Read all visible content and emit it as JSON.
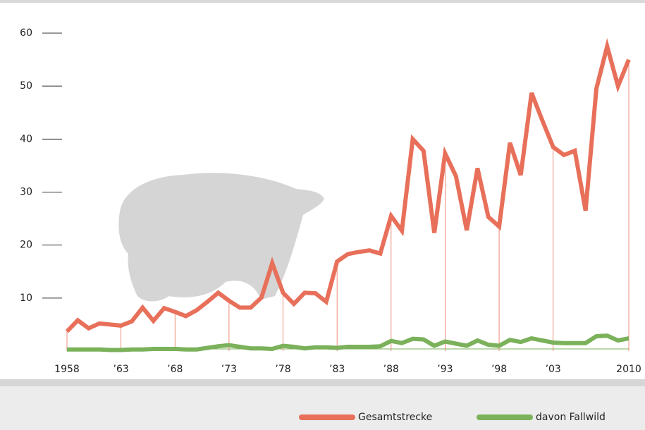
{
  "chart_data": {
    "type": "line",
    "x": [
      1958,
      1959,
      1960,
      1961,
      1962,
      1963,
      1964,
      1965,
      1966,
      1967,
      1968,
      1969,
      1970,
      1971,
      1972,
      1973,
      1974,
      1975,
      1976,
      1977,
      1978,
      1979,
      1980,
      1981,
      1982,
      1983,
      1984,
      1985,
      1986,
      1987,
      1988,
      1989,
      1990,
      1991,
      1992,
      1993,
      1994,
      1995,
      1996,
      1997,
      1998,
      1999,
      2000,
      2001,
      2002,
      2003,
      2004,
      2005,
      2006,
      2007,
      2008,
      2009,
      2010
    ],
    "series": [
      {
        "name": "Gesamtstrecke",
        "color": "#e8705a",
        "values": [
          3.7,
          5.8,
          4.3,
          5.2,
          5.0,
          4.8,
          5.6,
          8.2,
          5.7,
          8.1,
          7.4,
          6.6,
          7.7,
          9.3,
          11.0,
          9.5,
          8.2,
          8.2,
          10.1,
          16.6,
          11.0,
          8.9,
          11.0,
          10.9,
          9.3,
          16.9,
          18.3,
          18.7,
          19.0,
          18.4,
          25.5,
          22.7,
          40.0,
          37.8,
          22.3,
          37.3,
          33.0,
          22.8,
          34.5,
          25.3,
          23.5,
          39.3,
          33.2,
          48.7,
          43.5,
          38.5,
          37.0,
          37.8,
          26.5,
          49.5,
          57.5,
          50.0,
          55.0
        ]
      },
      {
        "name": "davon Fallwild",
        "color": "#7ab15a",
        "values": [
          0.3,
          0.3,
          0.3,
          0.3,
          0.2,
          0.2,
          0.3,
          0.3,
          0.4,
          0.4,
          0.4,
          0.3,
          0.3,
          0.6,
          0.9,
          1.1,
          0.8,
          0.5,
          0.5,
          0.4,
          1.0,
          0.8,
          0.5,
          0.7,
          0.7,
          0.6,
          0.8,
          0.8,
          0.8,
          0.9,
          1.9,
          1.5,
          2.3,
          2.2,
          1.0,
          1.8,
          1.4,
          1.0,
          2.0,
          1.2,
          1.0,
          2.1,
          1.7,
          2.4,
          2.0,
          1.6,
          1.5,
          1.5,
          1.5,
          2.8,
          2.9,
          2.0,
          2.4
        ]
      }
    ],
    "xlim": [
      1958,
      2010
    ],
    "xticks": [
      1958,
      {
        "value": 1963,
        "label": "’63"
      },
      {
        "value": 1968,
        "label": "’68"
      },
      {
        "value": 1973,
        "label": "’73"
      },
      {
        "value": 1978,
        "label": "’78"
      },
      {
        "value": 1983,
        "label": "’83"
      },
      {
        "value": 1988,
        "label": "’88"
      },
      {
        "value": 1993,
        "label": "’93"
      },
      {
        "value": 1998,
        "label": "’98"
      },
      {
        "value": 2003,
        "label": "’03"
      },
      2010
    ],
    "ylim": [
      0,
      60
    ],
    "yticks": [
      10,
      20,
      30,
      40,
      50,
      60
    ],
    "legend": "bottom-right"
  }
}
